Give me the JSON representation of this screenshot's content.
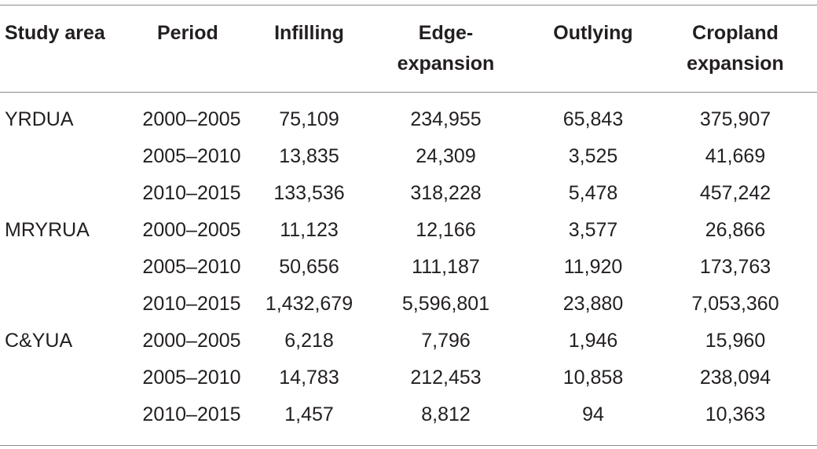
{
  "table": {
    "headers": {
      "study_area": "Study area",
      "period": "Period",
      "infilling": "Infilling",
      "edge_expansion_line1": "Edge-",
      "edge_expansion_line2": "expansion",
      "outlying": "Outlying",
      "cropland_expansion_line1": "Cropland",
      "cropland_expansion_line2": "expansion"
    },
    "rows": [
      {
        "area": "YRDUA",
        "period": "2000–2005",
        "infilling": "75,109",
        "edge": "234,955",
        "outlying": "65,843",
        "cropland": "375,907"
      },
      {
        "area": "",
        "period": "2005–2010",
        "infilling": "13,835",
        "edge": "24,309",
        "outlying": "3,525",
        "cropland": "41,669"
      },
      {
        "area": "",
        "period": "2010–2015",
        "infilling": "133,536",
        "edge": "318,228",
        "outlying": "5,478",
        "cropland": "457,242"
      },
      {
        "area": "MRYRUA",
        "period": "2000–2005",
        "infilling": "11,123",
        "edge": "12,166",
        "outlying": "3,577",
        "cropland": "26,866"
      },
      {
        "area": "",
        "period": "2005–2010",
        "infilling": "50,656",
        "edge": "111,187",
        "outlying": "11,920",
        "cropland": "173,763"
      },
      {
        "area": "",
        "period": "2010–2015",
        "infilling": "1,432,679",
        "edge": "5,596,801",
        "outlying": "23,880",
        "cropland": "7,053,360"
      },
      {
        "area": "C&YUA",
        "period": "2000–2005",
        "infilling": "6,218",
        "edge": "7,796",
        "outlying": "1,946",
        "cropland": "15,960"
      },
      {
        "area": "",
        "period": "2005–2010",
        "infilling": "14,783",
        "edge": "212,453",
        "outlying": "10,858",
        "cropland": "238,094"
      },
      {
        "area": "",
        "period": "2010–2015",
        "infilling": "1,457",
        "edge": "8,812",
        "outlying": "94",
        "cropland": "10,363"
      }
    ]
  }
}
